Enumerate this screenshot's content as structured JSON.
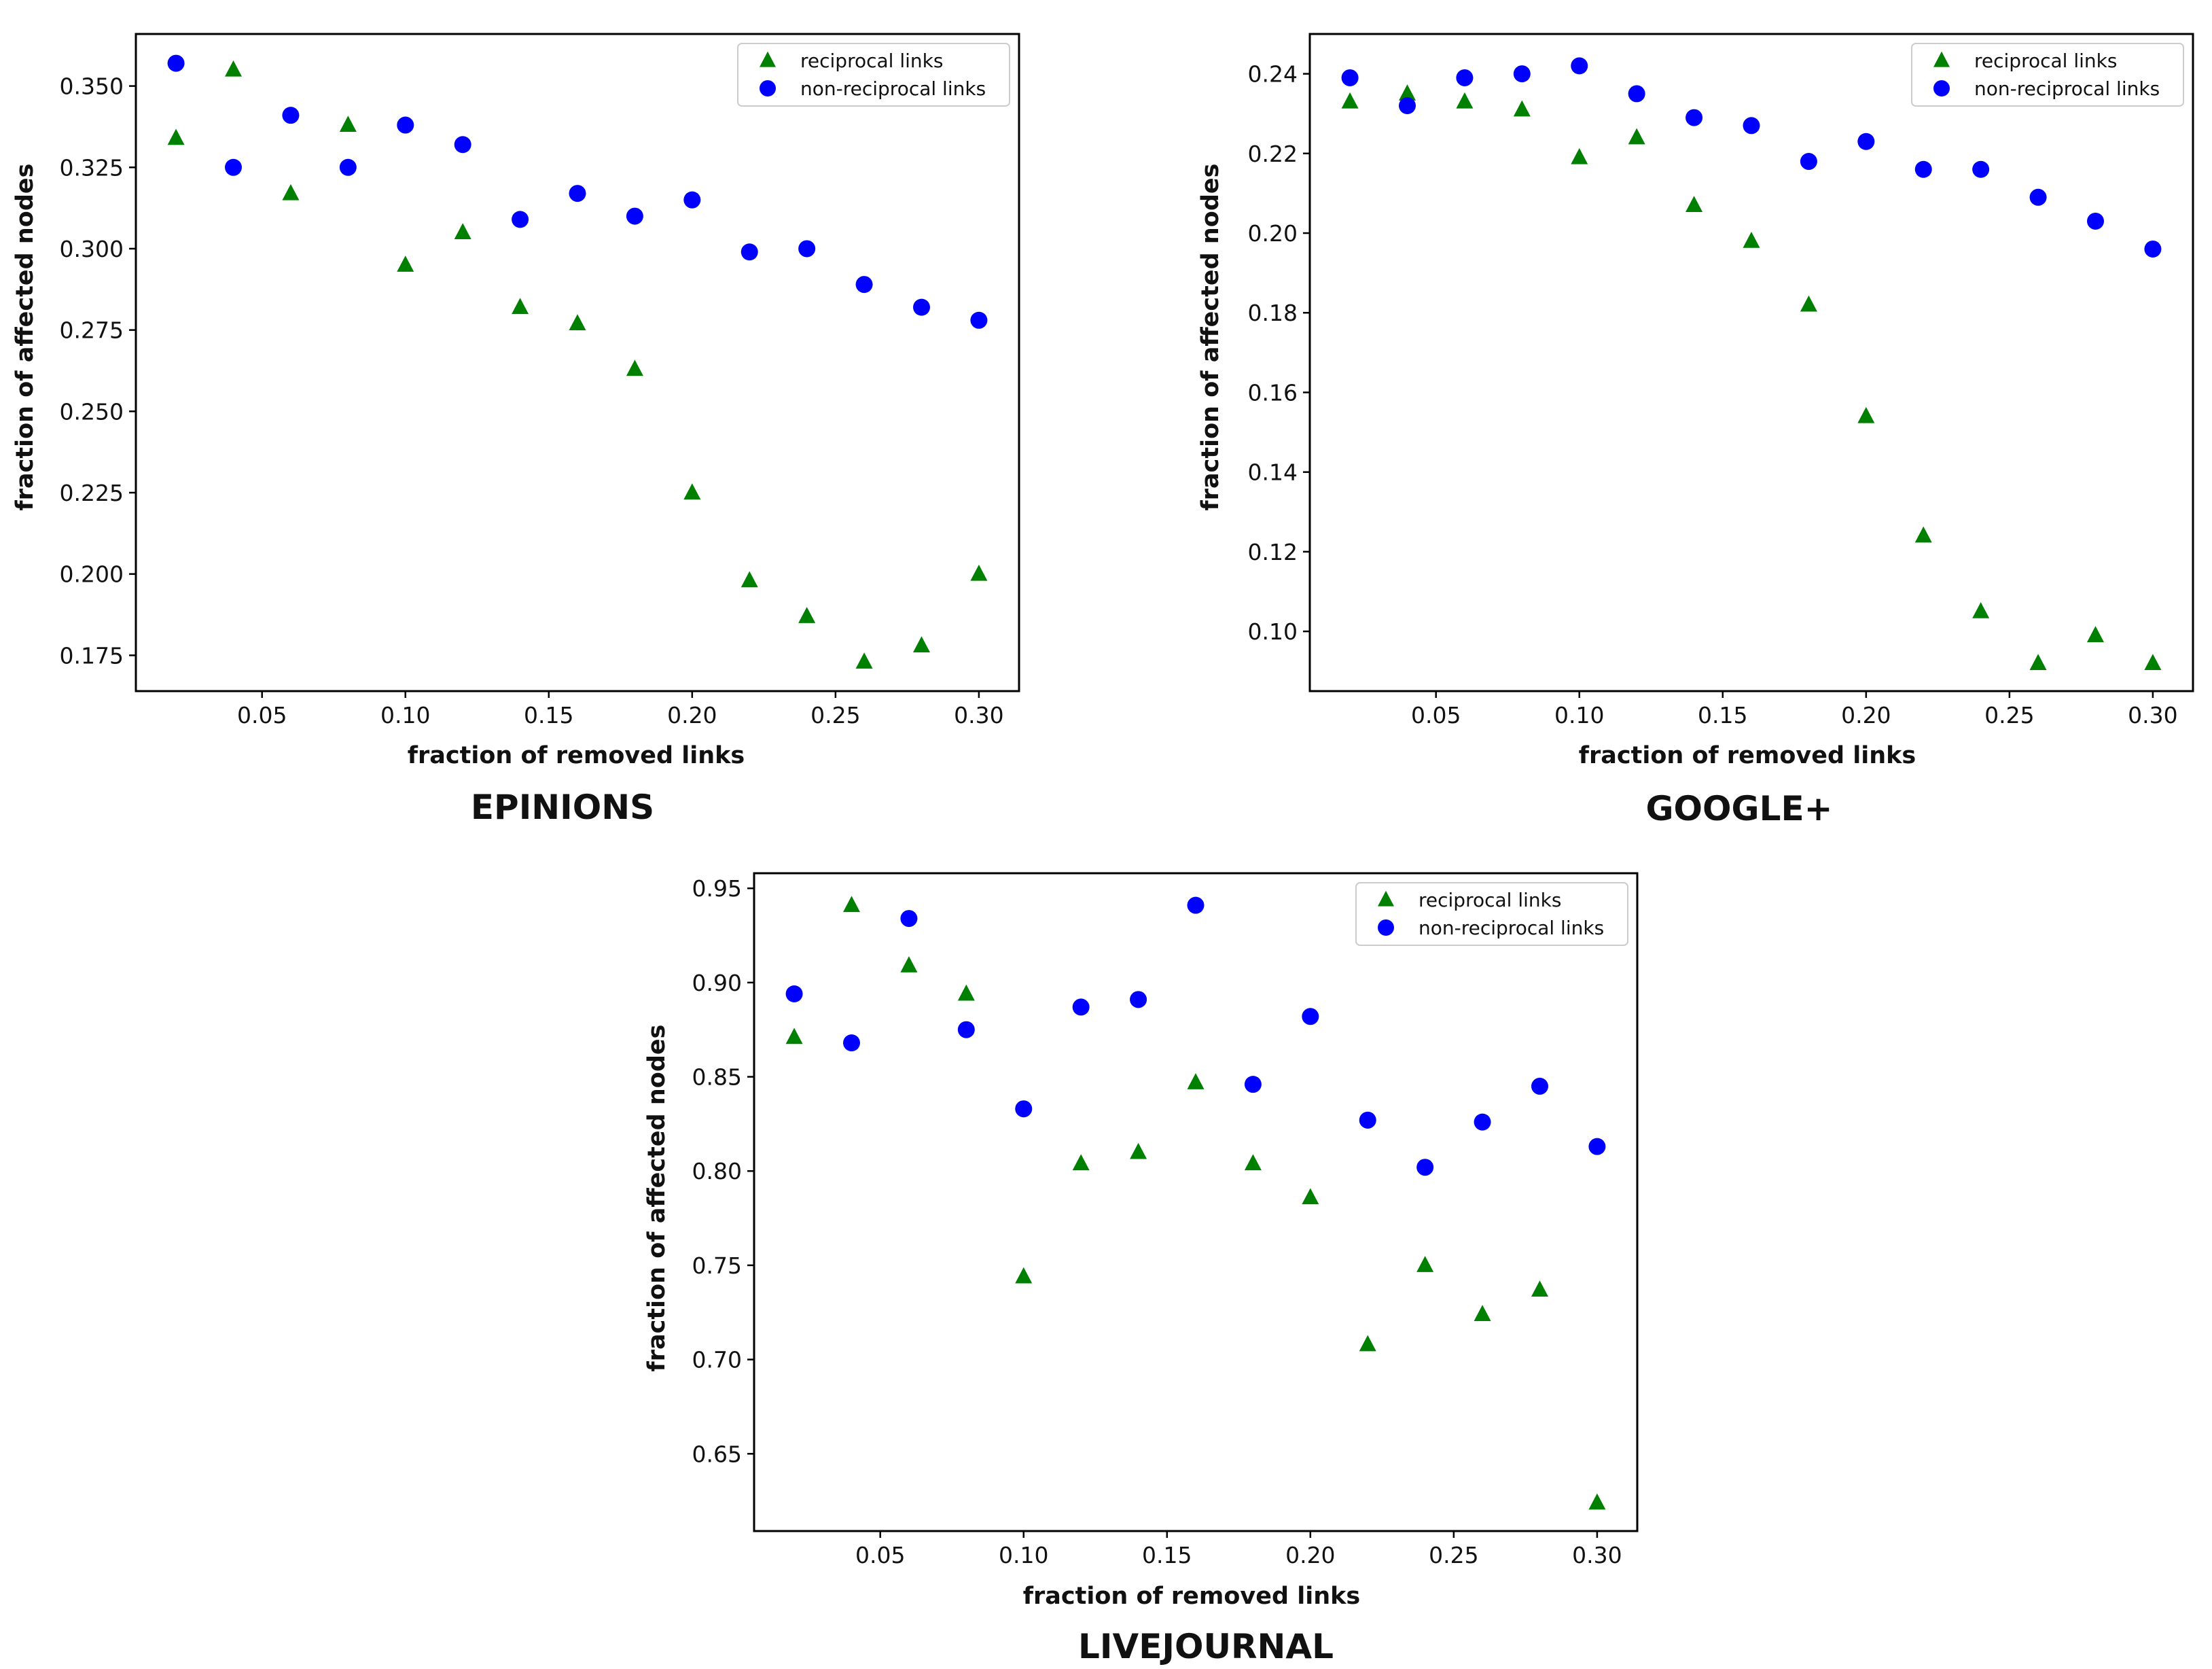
{
  "chart_data": [
    {
      "type": "scatter",
      "caption": "EPINIONS",
      "xlabel": "fraction of removed links",
      "ylabel": "fraction of affected nodes",
      "xlim": [
        0.006,
        0.314
      ],
      "ylim": [
        0.164,
        0.366
      ],
      "xticks": [
        0.05,
        0.1,
        0.15,
        0.2,
        0.25,
        0.3
      ],
      "xtick_labels": [
        "0.05",
        "0.10",
        "0.15",
        "0.20",
        "0.25",
        "0.30"
      ],
      "yticks": [
        0.175,
        0.2,
        0.225,
        0.25,
        0.275,
        0.3,
        0.325,
        0.35
      ],
      "ytick_labels": [
        "0.175",
        "0.200",
        "0.225",
        "0.250",
        "0.275",
        "0.300",
        "0.325",
        "0.350"
      ],
      "x": [
        0.02,
        0.04,
        0.06,
        0.08,
        0.1,
        0.12,
        0.14,
        0.16,
        0.18,
        0.2,
        0.22,
        0.24,
        0.26,
        0.28,
        0.3
      ],
      "series": [
        {
          "name": "reciprocal links",
          "marker": "triangle",
          "color": "#008000",
          "values": [
            0.334,
            0.355,
            0.317,
            0.338,
            0.295,
            0.305,
            0.282,
            0.277,
            0.263,
            0.225,
            0.198,
            0.187,
            0.173,
            0.178,
            0.2
          ]
        },
        {
          "name": "non-reciprocal links",
          "marker": "circle",
          "color": "#0000ff",
          "values": [
            0.357,
            0.325,
            0.341,
            0.325,
            0.338,
            0.332,
            0.309,
            0.317,
            0.31,
            0.315,
            0.299,
            0.3,
            0.289,
            0.282,
            0.278
          ]
        }
      ],
      "legend": "top-right"
    },
    {
      "type": "scatter",
      "caption": "GOOGLE+",
      "xlabel": "fraction of removed links",
      "ylabel": "fraction of affected nodes",
      "xlim": [
        0.006,
        0.314
      ],
      "ylim": [
        0.085,
        0.25
      ],
      "xticks": [
        0.05,
        0.1,
        0.15,
        0.2,
        0.25,
        0.3
      ],
      "xtick_labels": [
        "0.05",
        "0.10",
        "0.15",
        "0.20",
        "0.25",
        "0.30"
      ],
      "yticks": [
        0.1,
        0.12,
        0.14,
        0.16,
        0.18,
        0.2,
        0.22,
        0.24
      ],
      "ytick_labels": [
        "0.10",
        "0.12",
        "0.14",
        "0.16",
        "0.18",
        "0.20",
        "0.22",
        "0.24"
      ],
      "x": [
        0.02,
        0.04,
        0.06,
        0.08,
        0.1,
        0.12,
        0.14,
        0.16,
        0.18,
        0.2,
        0.22,
        0.24,
        0.26,
        0.28,
        0.3
      ],
      "series": [
        {
          "name": "reciprocal links",
          "marker": "triangle",
          "color": "#008000",
          "values": [
            0.233,
            0.235,
            0.233,
            0.231,
            0.219,
            0.224,
            0.207,
            0.198,
            0.182,
            0.154,
            0.124,
            0.105,
            0.092,
            0.099,
            0.092
          ]
        },
        {
          "name": "non-reciprocal links",
          "marker": "circle",
          "color": "#0000ff",
          "values": [
            0.239,
            0.232,
            0.239,
            0.24,
            0.242,
            0.235,
            0.229,
            0.227,
            0.218,
            0.223,
            0.216,
            0.216,
            0.209,
            0.203,
            0.196
          ]
        }
      ],
      "legend": "top-right"
    },
    {
      "type": "scatter",
      "caption": "LIVEJOURNAL",
      "xlabel": "fraction of removed links",
      "ylabel": "fraction of affected nodes",
      "xlim": [
        0.006,
        0.314
      ],
      "ylim": [
        0.609,
        0.958
      ],
      "xticks": [
        0.05,
        0.1,
        0.15,
        0.2,
        0.25,
        0.3
      ],
      "xtick_labels": [
        "0.05",
        "0.10",
        "0.15",
        "0.20",
        "0.25",
        "0.30"
      ],
      "yticks": [
        0.65,
        0.7,
        0.75,
        0.8,
        0.85,
        0.9,
        0.95
      ],
      "ytick_labels": [
        "0.65",
        "0.70",
        "0.75",
        "0.80",
        "0.85",
        "0.90",
        "0.95"
      ],
      "x": [
        0.02,
        0.04,
        0.06,
        0.08,
        0.1,
        0.12,
        0.14,
        0.16,
        0.18,
        0.2,
        0.22,
        0.24,
        0.26,
        0.28,
        0.3
      ],
      "series": [
        {
          "name": "reciprocal links",
          "marker": "triangle",
          "color": "#008000",
          "values": [
            0.871,
            0.941,
            0.909,
            0.894,
            0.744,
            0.804,
            0.81,
            0.847,
            0.804,
            0.786,
            0.708,
            0.75,
            0.724,
            0.737,
            0.624
          ]
        },
        {
          "name": "non-reciprocal links",
          "marker": "circle",
          "color": "#0000ff",
          "values": [
            0.894,
            0.868,
            0.934,
            0.875,
            0.833,
            0.887,
            0.891,
            0.941,
            0.846,
            0.882,
            0.827,
            0.802,
            0.826,
            0.845,
            0.813
          ]
        }
      ],
      "legend": "top-right"
    }
  ]
}
